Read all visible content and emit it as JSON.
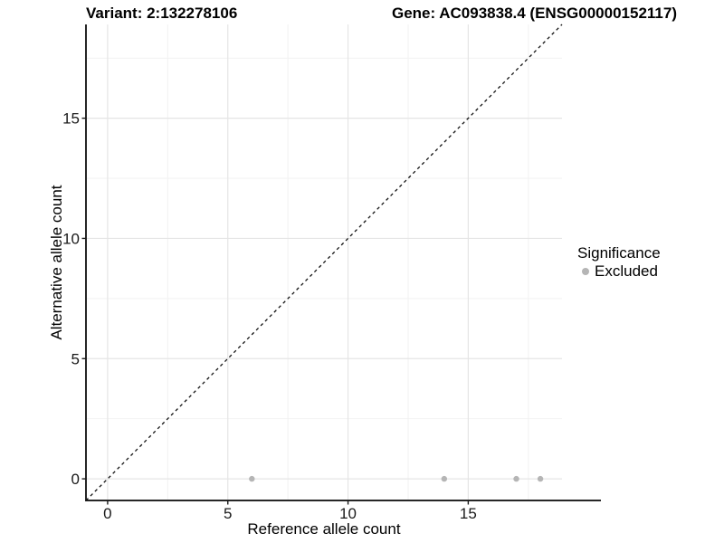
{
  "chart_data": {
    "type": "scatter",
    "titles": {
      "left": "Variant: 2:132278106",
      "right": "Gene: AC093838.4 (ENSG00000152117)"
    },
    "xlabel": "Reference allele count",
    "ylabel": "Alternative allele count",
    "x_ticks": [
      0,
      5,
      10,
      15
    ],
    "y_ticks": [
      0,
      5,
      10,
      15
    ],
    "x_minor_ticks": [
      2.5,
      7.5,
      12.5,
      17.5
    ],
    "y_minor_ticks": [
      2.5,
      7.5,
      12.5,
      17.5
    ],
    "xlim": [
      -0.9,
      18.9
    ],
    "ylim": [
      -0.9,
      18.9
    ],
    "grid": "major+minor",
    "legend": {
      "title": "Significance",
      "position": "right",
      "items": [
        {
          "label": "Excluded",
          "color": "#b5b5b5"
        }
      ]
    },
    "series": [
      {
        "name": "Excluded",
        "color": "#b5b5b5",
        "points": [
          [
            6,
            0
          ],
          [
            14,
            0
          ],
          [
            17,
            0
          ],
          [
            18,
            0
          ]
        ]
      }
    ],
    "reference_line": {
      "kind": "identity",
      "equation": "y = x",
      "style": "dashed",
      "color": "#111111"
    },
    "style": {
      "background": "#ffffff",
      "major_grid": "#e5e5e5",
      "minor_grid": "#f2f2f2",
      "axis_line": "#262626",
      "tick_color": "#1a1a1a",
      "text_color": "#1a1a1a",
      "point_radius": 3.2
    }
  }
}
